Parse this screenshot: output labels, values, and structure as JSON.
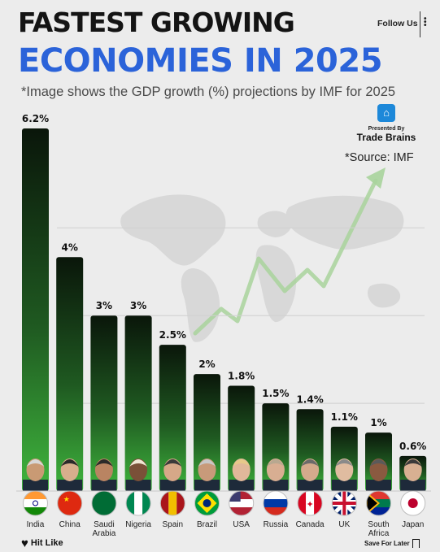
{
  "header": {
    "title_line1": "FASTEST GROWING",
    "title_line2": "ECONOMIES IN 2025",
    "subtitle": "*Image shows the GDP growth (%) projections by IMF for 2025",
    "follow_label": "Follow Us"
  },
  "brand": {
    "presented_by": "Presented By",
    "name": "Trade Brains",
    "source": "*Source: IMF"
  },
  "footer": {
    "left_label": "Hit Like",
    "right_label": "Save For Later"
  },
  "colors": {
    "title_blue": "#2b63d9",
    "bar_top": "#0a160a",
    "bar_mid": "#1f5a21",
    "bar_bottom": "#3fb53d"
  },
  "chart_data": {
    "type": "bar",
    "title": "FASTEST GROWING ECONOMIES IN 2025",
    "categories": [
      "India",
      "China",
      "Saudi Arabia",
      "Nigeria",
      "Spain",
      "Brazil",
      "USA",
      "Russia",
      "Canada",
      "UK",
      "South Africa",
      "Japan"
    ],
    "category_lines": [
      [
        "India"
      ],
      [
        "China"
      ],
      [
        "Saudi",
        "Arabia"
      ],
      [
        "Nigeria"
      ],
      [
        "Spain"
      ],
      [
        "Brazil"
      ],
      [
        "USA"
      ],
      [
        "Russia"
      ],
      [
        "Canada"
      ],
      [
        "UK"
      ],
      [
        "South",
        "Africa"
      ],
      [
        "Japan"
      ]
    ],
    "values": [
      6.2,
      4,
      3,
      3,
      2.5,
      2,
      1.8,
      1.5,
      1.4,
      1.1,
      1,
      0.6
    ],
    "value_labels": [
      "6.2%",
      "4%",
      "3%",
      "3%",
      "2.5%",
      "2%",
      "1.8%",
      "1.5%",
      "1.4%",
      "1.1%",
      "1%",
      "0.6%"
    ],
    "ylim": [
      0,
      6.2
    ],
    "grid": true,
    "xlabel": "",
    "ylabel": ""
  }
}
